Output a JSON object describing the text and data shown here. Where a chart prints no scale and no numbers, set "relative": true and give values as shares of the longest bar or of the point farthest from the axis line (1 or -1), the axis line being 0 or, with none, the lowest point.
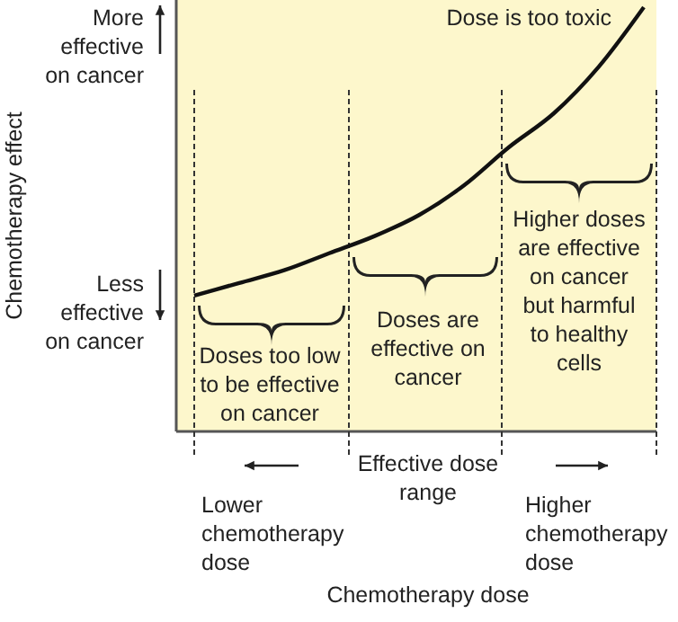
{
  "chart_data": {
    "type": "line",
    "relative": true,
    "categories": [
      null,
      null,
      null,
      null,
      null,
      null,
      null,
      null,
      null,
      null,
      null
    ],
    "series": [
      {
        "color": "#111111",
        "values": [
          0.32,
          0.35,
          0.38,
          0.42,
          0.46,
          0.51,
          0.58,
          0.67,
          0.75,
          0.86,
          1.0
        ]
      }
    ],
    "annotations": [
      "Dose is too toxic",
      "More\neffective\non cancer",
      "Less\neffective\non cancer",
      "Doses too low\nto be effective\non cancer",
      "Doses are\neffective on\ncancer",
      "Higher doses\nare effective\non cancer\nbut harmful\nto healthy\ncells",
      "Lower\nchemotherapy\ndose",
      "Effective dose\nrange",
      "Higher\nchemotherapy\ndose",
      "Chemotherapy dose",
      "Chemotherapy effect"
    ],
    "marker": "none",
    "line_style": "solid"
  }
}
